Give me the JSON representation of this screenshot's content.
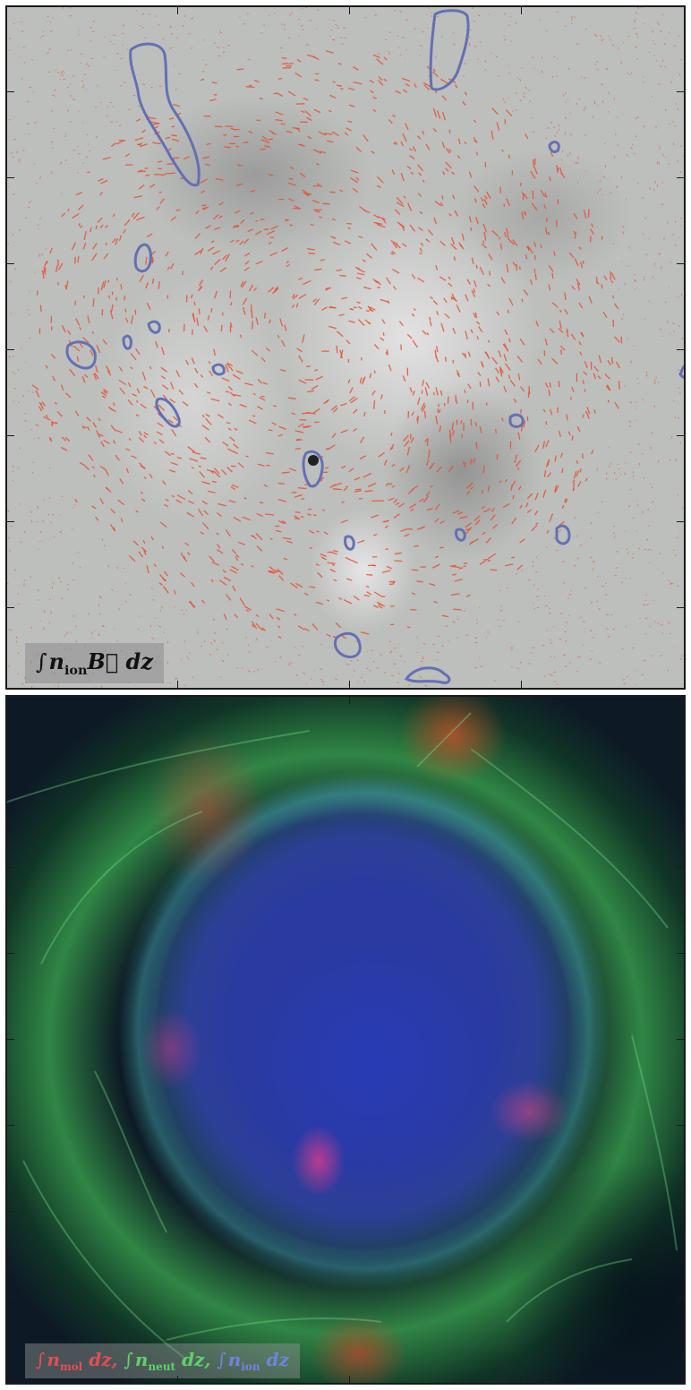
{
  "top_panel": {
    "label": {
      "integral": "∫",
      "n": "n",
      "sub": "ion",
      "vector": "B⃗",
      "dz": "dz"
    },
    "colors": {
      "background": "#bdbfbd",
      "vectors": "#e8502e",
      "contours": "#6470b4"
    }
  },
  "bottom_panel": {
    "label": {
      "t1_int": "∫",
      "t1_n": "n",
      "t1_sub": "mol",
      "t1_dz": "dz,",
      "t2_int": "∫",
      "t2_n": "n",
      "t2_sub": "neut",
      "t2_dz": "dz,",
      "t3_int": "∫",
      "t3_n": "n",
      "t3_sub": "ion",
      "t3_dz": "dz"
    },
    "colors": {
      "molecular": "#e05050",
      "neutral": "#5fd16a",
      "ionized": "#3344a8"
    }
  }
}
